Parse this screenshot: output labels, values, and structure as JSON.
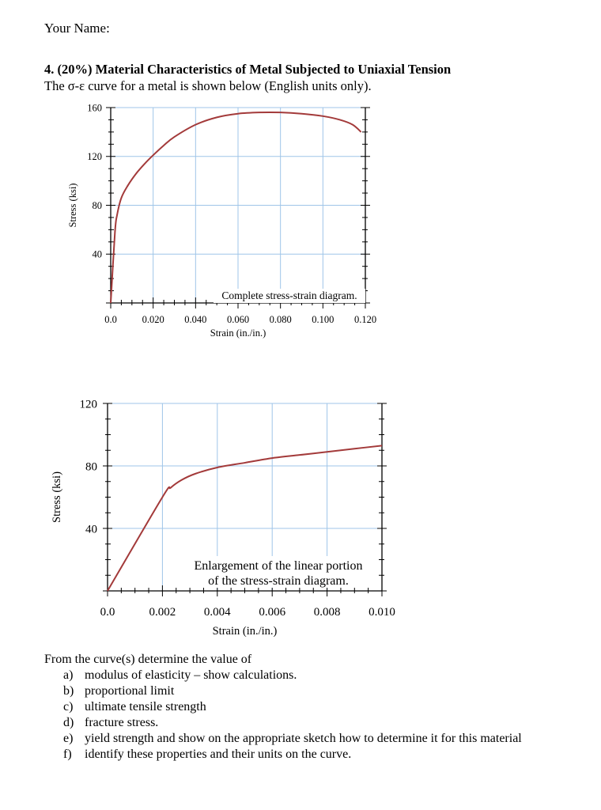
{
  "header": {
    "your_name_label": "Your Name:",
    "question_heading": "4. (20%) Material Characteristics of Metal Subjected to Uniaxial Tension",
    "intro": "The σ-ε curve for a metal is shown below (English units only)."
  },
  "chart_data": [
    {
      "type": "line",
      "caption": "Complete stress-strain diagram.",
      "xlabel": "Strain (in./in.)",
      "ylabel": "Stress (ksi)",
      "xlim": [
        0.0,
        0.12
      ],
      "ylim": [
        0,
        160
      ],
      "x_tick_labels": [
        "0.0",
        "0.020",
        "0.040",
        "0.060",
        "0.080",
        "0.100",
        "0.120"
      ],
      "y_tick_labels": [
        "40",
        "80",
        "120",
        "160"
      ],
      "grid": true,
      "series": [
        {
          "x": [
            0.0,
            0.002,
            0.003,
            0.005,
            0.008,
            0.012,
            0.016,
            0.02,
            0.025,
            0.03,
            0.04,
            0.05,
            0.06,
            0.07,
            0.08,
            0.09,
            0.1,
            0.108,
            0.114,
            0.118
          ],
          "y": [
            0,
            58,
            72,
            86,
            96,
            106,
            114,
            121,
            129,
            136,
            146,
            152,
            155,
            156,
            156,
            155,
            153,
            150,
            146,
            140
          ]
        }
      ]
    },
    {
      "type": "line",
      "caption_lines": [
        "Enlargement of the linear portion",
        "of the stress-strain diagram."
      ],
      "xlabel": "Strain (in./in.)",
      "ylabel": "Stress (ksi)",
      "xlim": [
        0.0,
        0.01
      ],
      "ylim": [
        0,
        120
      ],
      "x_tick_labels": [
        "0.0",
        "0.002",
        "0.004",
        "0.006",
        "0.008",
        "0.010"
      ],
      "y_tick_labels": [
        "40",
        "80",
        "120"
      ],
      "grid": true,
      "series": [
        {
          "x": [
            0.0,
            0.002,
            0.0023,
            0.0027,
            0.0032,
            0.004,
            0.005,
            0.006,
            0.007,
            0.008,
            0.009,
            0.01
          ],
          "y": [
            0,
            60,
            66,
            71,
            75,
            79,
            82,
            85,
            87,
            89,
            91,
            93
          ]
        }
      ]
    }
  ],
  "questions": {
    "intro": "From the curve(s) determine the value of",
    "items": [
      {
        "letter": "a)",
        "text": "modulus of elasticity – show calculations."
      },
      {
        "letter": "b)",
        "text": "proportional limit"
      },
      {
        "letter": "c)",
        "text": "ultimate tensile strength"
      },
      {
        "letter": "d)",
        "text": "fracture stress."
      },
      {
        "letter": "e)",
        "text": "yield strength and show on the appropriate sketch how to determine it for this material"
      },
      {
        "letter": "f)",
        "text": "identify these properties and their units on the curve."
      }
    ]
  },
  "colors": {
    "curve": "#a33a3a",
    "grid": "#9fc5e8",
    "axes": "#000000",
    "text": "#000000"
  }
}
